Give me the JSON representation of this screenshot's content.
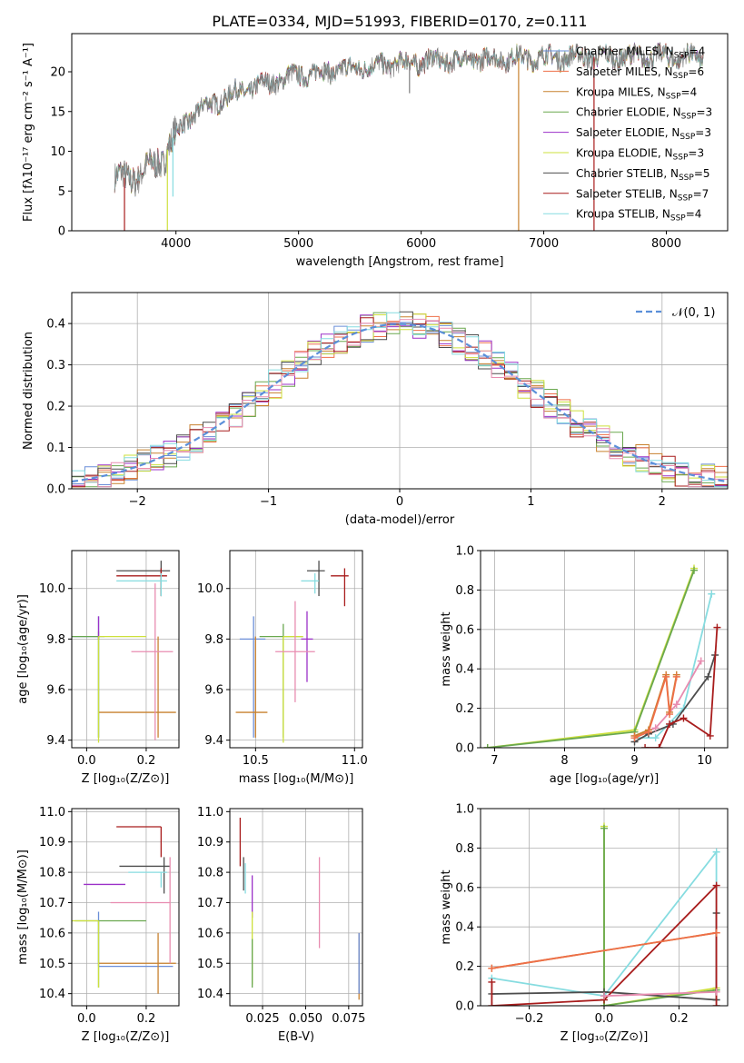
{
  "title": "PLATE=0334, MJD=51993, FIBERID=0170, z=0.111",
  "colors": {
    "chabrier_miles": "#6a8ed8",
    "salpeter_miles": "#ee6f48",
    "kroupa_miles": "#c8812e",
    "chabrier_elodie": "#6aa84f",
    "salpeter_elodie": "#9b30c8",
    "kroupa_elodie": "#cde03c",
    "chabrier_stelib": "#4d4d4d",
    "salpeter_stelib": "#a81c1c",
    "kroupa_stelib": "#86dce0",
    "pink": "#e88cb0",
    "spectrum_gray": "#7f7f7f",
    "normal_curve": "#5b8fd9",
    "grid": "#b0b0b0"
  },
  "chart_data": [
    {
      "id": "spectrum",
      "type": "line",
      "title": "PLATE=0334, MJD=51993, FIBERID=0170, z=0.111",
      "xlabel": "wavelength [Angstrom, rest frame]",
      "ylabel": "Flux [fλ10⁻¹⁷ erg cm⁻² s⁻¹ A⁻¹]",
      "xlim": [
        3150,
        8500
      ],
      "ylim": [
        0,
        24.8
      ],
      "xticks": [
        4000,
        5000,
        6000,
        7000,
        8000
      ],
      "yticks": [
        0,
        5,
        10,
        15,
        20
      ],
      "grid": false,
      "legend_position": "top-right",
      "legend": [
        {
          "label": "Chabrier MILES, N",
          "sub": "SSP",
          "suffix": "=4",
          "color": "chabrier_miles"
        },
        {
          "label": "Salpeter MILES, N",
          "sub": "SSP",
          "suffix": "=6",
          "color": "salpeter_miles"
        },
        {
          "label": "Kroupa MILES, N",
          "sub": "SSP",
          "suffix": "=4",
          "color": "kroupa_miles"
        },
        {
          "label": "Chabrier ELODIE, N",
          "sub": "SSP",
          "suffix": "=3",
          "color": "chabrier_elodie"
        },
        {
          "label": "Salpeter ELODIE, N",
          "sub": "SSP",
          "suffix": "=3",
          "color": "salpeter_elodie"
        },
        {
          "label": "Kroupa ELODIE, N",
          "sub": "SSP",
          "suffix": "=3",
          "color": "kroupa_elodie"
        },
        {
          "label": "Chabrier STELIB, N",
          "sub": "SSP",
          "suffix": "=5",
          "color": "chabrier_stelib"
        },
        {
          "label": "Salpeter STELIB, N",
          "sub": "SSP",
          "suffix": "=7",
          "color": "salpeter_stelib"
        },
        {
          "label": "Kroupa STELIB, N",
          "sub": "SSP",
          "suffix": "=4",
          "color": "kroupa_stelib"
        }
      ],
      "continuum": [
        [
          3500,
          6.5
        ],
        [
          3700,
          6.9
        ],
        [
          3900,
          9.2
        ],
        [
          4000,
          12.5
        ],
        [
          4200,
          15.3
        ],
        [
          4500,
          17.4
        ],
        [
          5000,
          19.6
        ],
        [
          5500,
          20.5
        ],
        [
          6000,
          21.3
        ],
        [
          6500,
          21.6
        ],
        [
          7000,
          21.8
        ],
        [
          7500,
          21.9
        ],
        [
          8000,
          21.9
        ],
        [
          8300,
          21.8
        ]
      ],
      "dips": [
        {
          "x": 3580,
          "y": 0,
          "color": "salpeter_stelib"
        },
        {
          "x": 3930,
          "y": 0,
          "color": "kroupa_elodie"
        },
        {
          "x": 3975,
          "y": 4.3,
          "color": "kroupa_stelib"
        },
        {
          "x": 5905,
          "y": 17.3,
          "color": "spectrum_gray"
        },
        {
          "x": 6795,
          "y": 0,
          "color": "kroupa_miles"
        },
        {
          "x": 7410,
          "y": 0,
          "color": "salpeter_stelib"
        }
      ]
    },
    {
      "id": "residuals",
      "type": "line",
      "xlabel": "(data-model)/error",
      "ylabel": "Normed distribution",
      "xlim": [
        -2.5,
        2.5
      ],
      "ylim": [
        0,
        0.475
      ],
      "xticks": [
        -2,
        -1,
        0,
        1,
        2
      ],
      "yticks": [
        0.0,
        0.1,
        0.2,
        0.3,
        0.4
      ],
      "grid": true,
      "legend_position": "top-right",
      "legend": [
        {
          "label": "𝒩(0, 1)",
          "color": "normal_curve"
        }
      ],
      "bin_width": 0.1
    },
    {
      "id": "age_vs_z",
      "type": "scatter",
      "xlabel": "Z [log₁₀(Z/Z⊙)]",
      "ylabel": "age  [log₁₀(age/yr)]",
      "xlim": [
        -0.05,
        0.31
      ],
      "ylim": [
        9.37,
        10.15
      ],
      "xticks": [
        0.0,
        0.2
      ],
      "yticks": [
        9.4,
        9.6,
        9.8,
        10.0
      ],
      "grid": true,
      "points": [
        {
          "x": 0.04,
          "y": 9.81,
          "xerr": [
            0.13,
            0.02
          ],
          "yerr": [
            0.4,
            0.08
          ],
          "color": "chabrier_miles"
        },
        {
          "x": 0.24,
          "y": 9.51,
          "xerr": [
            0.2,
            0.06
          ],
          "yerr": [
            0.1,
            0.3
          ],
          "color": "kroupa_miles"
        },
        {
          "x": 0.04,
          "y": 9.81,
          "xerr": [
            0.12,
            0.0
          ],
          "yerr": [
            0.4,
            0.02
          ],
          "color": "chabrier_elodie"
        },
        {
          "x": 0.04,
          "y": 9.8,
          "xerr": [
            0.0,
            0.0
          ],
          "yerr": [
            0.0,
            0.09
          ],
          "color": "salpeter_elodie"
        },
        {
          "x": 0.04,
          "y": 9.81,
          "xerr": [
            0.0,
            0.16
          ],
          "yerr": [
            0.42,
            0.0
          ],
          "color": "kroupa_elodie"
        },
        {
          "x": 0.25,
          "y": 10.07,
          "xerr": [
            0.15,
            0.03
          ],
          "yerr": [
            0.1,
            0.04
          ],
          "color": "chabrier_stelib"
        },
        {
          "x": 0.25,
          "y": 10.05,
          "xerr": [
            0.15,
            0.02
          ],
          "yerr": [
            0.08,
            0.03
          ],
          "color": "salpeter_stelib"
        },
        {
          "x": 0.25,
          "y": 10.03,
          "xerr": [
            0.15,
            0.02
          ],
          "yerr": [
            0.06,
            0.03
          ],
          "color": "kroupa_stelib"
        },
        {
          "x": 0.23,
          "y": 9.75,
          "xerr": [
            0.08,
            0.06
          ],
          "yerr": [
            0.35,
            0.27
          ],
          "color": "pink"
        }
      ]
    },
    {
      "id": "age_vs_mass",
      "type": "scatter",
      "xlabel": "mass [log₁₀(M/M⊙)]",
      "ylabel": "",
      "xlim": [
        10.37,
        11.04
      ],
      "ylim": [
        9.37,
        10.15
      ],
      "xticks": [
        10.5,
        11.0
      ],
      "yticks": [
        9.4,
        9.6,
        9.8,
        10.0
      ],
      "grid": true,
      "points": [
        {
          "x": 10.49,
          "y": 9.8,
          "xerr": [
            0.07,
            0.06
          ],
          "yerr": [
            0.39,
            0.09
          ],
          "color": "chabrier_miles"
        },
        {
          "x": 10.5,
          "y": 9.51,
          "xerr": [
            0.1,
            0.06
          ],
          "yerr": [
            0.1,
            0.3
          ],
          "color": "kroupa_miles"
        },
        {
          "x": 10.64,
          "y": 9.81,
          "xerr": [
            0.12,
            0.1
          ],
          "yerr": [
            0.4,
            0.05
          ],
          "color": "chabrier_elodie"
        },
        {
          "x": 10.76,
          "y": 9.8,
          "xerr": [
            0.03,
            0.03
          ],
          "yerr": [
            0.17,
            0.11
          ],
          "color": "salpeter_elodie"
        },
        {
          "x": 10.64,
          "y": 9.81,
          "xerr": [
            0.0,
            0.1
          ],
          "yerr": [
            0.42,
            0.0
          ],
          "color": "kroupa_elodie"
        },
        {
          "x": 10.82,
          "y": 10.07,
          "xerr": [
            0.06,
            0.03
          ],
          "yerr": [
            0.1,
            0.04
          ],
          "color": "chabrier_stelib"
        },
        {
          "x": 10.95,
          "y": 10.05,
          "xerr": [
            0.07,
            0.02
          ],
          "yerr": [
            0.12,
            0.03
          ],
          "color": "salpeter_stelib"
        },
        {
          "x": 10.8,
          "y": 10.03,
          "xerr": [
            0.07,
            0.02
          ],
          "yerr": [
            0.05,
            0.03
          ],
          "color": "kroupa_stelib"
        },
        {
          "x": 10.7,
          "y": 9.75,
          "xerr": [
            0.1,
            0.1
          ],
          "yerr": [
            0.2,
            0.2
          ],
          "color": "pink"
        }
      ]
    },
    {
      "id": "mass_weight_vs_age",
      "type": "line",
      "xlabel": "age  [log₁₀(age/yr)]",
      "ylabel": "mass weight",
      "xlim": [
        6.8,
        10.33
      ],
      "ylim": [
        0,
        1.0
      ],
      "xticks": [
        7,
        8,
        9,
        10
      ],
      "yticks": [
        0.0,
        0.2,
        0.4,
        0.6,
        0.8,
        1.0
      ],
      "grid": true,
      "series": [
        {
          "color": "kroupa_elodie",
          "x": [
            6.9,
            9.0,
            9.85
          ],
          "y": [
            0.0,
            0.09,
            0.91
          ]
        },
        {
          "color": "chabrier_elodie",
          "x": [
            6.9,
            9.0,
            9.85
          ],
          "y": [
            0.0,
            0.08,
            0.9
          ]
        },
        {
          "color": "kroupa_stelib",
          "x": [
            9.0,
            9.3,
            9.7,
            10.1
          ],
          "y": [
            0.05,
            0.05,
            0.2,
            0.78
          ]
        },
        {
          "color": "chabrier_stelib",
          "x": [
            9.0,
            9.2,
            9.55,
            10.05,
            10.15
          ],
          "y": [
            0.03,
            0.07,
            0.12,
            0.36,
            0.47
          ]
        },
        {
          "color": "salpeter_stelib",
          "x": [
            9.15,
            9.35,
            9.5,
            9.7,
            10.08,
            10.18
          ],
          "y": [
            0.0,
            0.0,
            0.12,
            0.15,
            0.06,
            0.61
          ]
        },
        {
          "color": "pink",
          "x": [
            9.0,
            9.3,
            9.6,
            9.95
          ],
          "y": [
            0.06,
            0.1,
            0.22,
            0.44
          ]
        },
        {
          "color": "kroupa_miles",
          "x": [
            9.0,
            9.2,
            9.45,
            9.5,
            9.6
          ],
          "y": [
            0.06,
            0.09,
            0.37,
            0.18,
            0.37
          ]
        },
        {
          "color": "salpeter_miles",
          "x": [
            9.0,
            9.2,
            9.45,
            9.5,
            9.6
          ],
          "y": [
            0.05,
            0.08,
            0.36,
            0.17,
            0.36
          ]
        }
      ]
    },
    {
      "id": "mass_vs_z",
      "type": "scatter",
      "xlabel": "Z [log₁₀(Z/Z⊙)]",
      "ylabel": "mass [log₁₀(M/M⊙)]",
      "xlim": [
        -0.05,
        0.31
      ],
      "ylim": [
        10.36,
        11.01
      ],
      "xticks": [
        0.0,
        0.2
      ],
      "yticks": [
        10.4,
        10.5,
        10.6,
        10.7,
        10.8,
        10.9,
        11.0
      ],
      "grid": true,
      "points": [
        {
          "x": 0.04,
          "y": 10.49,
          "xerr": [
            0.0,
            0.25
          ],
          "yerr": [
            0.0,
            0.18
          ],
          "color": "chabrier_miles"
        },
        {
          "x": 0.24,
          "y": 10.5,
          "xerr": [
            0.2,
            0.06
          ],
          "yerr": [
            0.1,
            0.1
          ],
          "color": "kroupa_miles"
        },
        {
          "x": 0.04,
          "y": 10.64,
          "xerr": [
            0.08,
            0.16
          ],
          "yerr": [
            0.22,
            0.0
          ],
          "color": "chabrier_elodie"
        },
        {
          "x": 0.04,
          "y": 10.76,
          "xerr": [
            0.05,
            0.09
          ],
          "yerr": [
            0.0,
            0.0
          ],
          "color": "salpeter_elodie"
        },
        {
          "x": 0.04,
          "y": 10.64,
          "xerr": [
            0.12,
            0.0
          ],
          "yerr": [
            0.22,
            0.0
          ],
          "color": "kroupa_elodie"
        },
        {
          "x": 0.26,
          "y": 10.82,
          "xerr": [
            0.15,
            0.02
          ],
          "yerr": [
            0.09,
            0.03
          ],
          "color": "chabrier_stelib"
        },
        {
          "x": 0.25,
          "y": 10.95,
          "xerr": [
            0.15,
            0.0
          ],
          "yerr": [
            0.1,
            0.0
          ],
          "color": "salpeter_stelib"
        },
        {
          "x": 0.25,
          "y": 10.8,
          "xerr": [
            0.11,
            0.02
          ],
          "yerr": [
            0.05,
            0.0
          ],
          "color": "kroupa_stelib"
        },
        {
          "x": 0.28,
          "y": 10.7,
          "xerr": [
            0.2,
            0.0
          ],
          "yerr": [
            0.2,
            0.15
          ],
          "color": "pink"
        }
      ]
    },
    {
      "id": "mass_vs_ebv",
      "type": "scatter",
      "xlabel": "E(B-V)",
      "ylabel": "",
      "xlim": [
        0.006,
        0.083
      ],
      "ylim": [
        10.36,
        11.01
      ],
      "xticks": [
        0.025,
        0.05,
        0.075
      ],
      "xticklabels": [
        "0.025",
        "0.050",
        "0.075"
      ],
      "yticks": [
        10.4,
        10.5,
        10.6,
        10.7,
        10.8,
        10.9,
        11.0
      ],
      "grid": true,
      "points": [
        {
          "x": 0.012,
          "y": 10.9,
          "xerr": [
            0,
            0
          ],
          "yerr": [
            0.08,
            0.08
          ],
          "color": "salpeter_stelib"
        },
        {
          "x": 0.015,
          "y": 10.78,
          "xerr": [
            0,
            0
          ],
          "yerr": [
            0.05,
            0.05
          ],
          "color": "kroupa_stelib"
        },
        {
          "x": 0.014,
          "y": 10.8,
          "xerr": [
            0,
            0
          ],
          "yerr": [
            0.06,
            0.05
          ],
          "color": "chabrier_stelib"
        },
        {
          "x": 0.019,
          "y": 10.72,
          "xerr": [
            0,
            0
          ],
          "yerr": [
            0.07,
            0.07
          ],
          "color": "salpeter_elodie"
        },
        {
          "x": 0.019,
          "y": 10.55,
          "xerr": [
            0,
            0
          ],
          "yerr": [
            0.12,
            0.12
          ],
          "color": "kroupa_elodie"
        },
        {
          "x": 0.019,
          "y": 10.5,
          "xerr": [
            0,
            0
          ],
          "yerr": [
            0.08,
            0.08
          ],
          "color": "chabrier_elodie"
        },
        {
          "x": 0.058,
          "y": 10.7,
          "xerr": [
            0,
            0
          ],
          "yerr": [
            0.15,
            0.15
          ],
          "color": "pink"
        },
        {
          "x": 0.081,
          "y": 10.49,
          "xerr": [
            0,
            0
          ],
          "yerr": [
            0.11,
            0.11
          ],
          "color": "kroupa_miles"
        },
        {
          "x": 0.081,
          "y": 10.5,
          "xerr": [
            0,
            0
          ],
          "yerr": [
            0.1,
            0.1
          ],
          "color": "chabrier_miles"
        }
      ]
    },
    {
      "id": "mass_weight_vs_z",
      "type": "line",
      "xlabel": "Z [log₁₀(Z/Z⊙)]",
      "ylabel": "mass weight",
      "xlim": [
        -0.33,
        0.33
      ],
      "ylim": [
        0,
        1.0
      ],
      "xticks": [
        -0.2,
        0.0,
        0.2
      ],
      "yticks": [
        0.0,
        0.2,
        0.4,
        0.6,
        0.8,
        1.0
      ],
      "grid": true,
      "series": [
        {
          "color": "kroupa_elodie",
          "x": [
            0.0,
            0.0,
            0.3
          ],
          "y": [
            0.91,
            0.0,
            0.09
          ]
        },
        {
          "color": "chabrier_elodie",
          "x": [
            0.0,
            0.0,
            0.3
          ],
          "y": [
            0.9,
            0.0,
            0.08
          ]
        },
        {
          "color": "kroupa_stelib",
          "x": [
            -0.3,
            0.0,
            0.3,
            0.3
          ],
          "y": [
            0.14,
            0.05,
            0.78,
            0.03
          ]
        },
        {
          "color": "chabrier_stelib",
          "x": [
            -0.3,
            0.0,
            0.3,
            0.3
          ],
          "y": [
            0.06,
            0.07,
            0.03,
            0.47
          ]
        },
        {
          "color": "salpeter_stelib",
          "x": [
            -0.3,
            -0.3,
            0.0,
            0.3,
            0.3
          ],
          "y": [
            0.12,
            0.0,
            0.03,
            0.61,
            0.0
          ]
        },
        {
          "color": "kroupa_miles",
          "x": [
            -0.3,
            0.3
          ],
          "y": [
            0.19,
            0.37
          ]
        },
        {
          "color": "salpeter_miles",
          "x": [
            -0.3,
            0.3
          ],
          "y": [
            0.19,
            0.37
          ]
        },
        {
          "color": "pink",
          "x": [
            0.0,
            0.3
          ],
          "y": [
            0.05,
            0.07
          ]
        }
      ]
    }
  ]
}
